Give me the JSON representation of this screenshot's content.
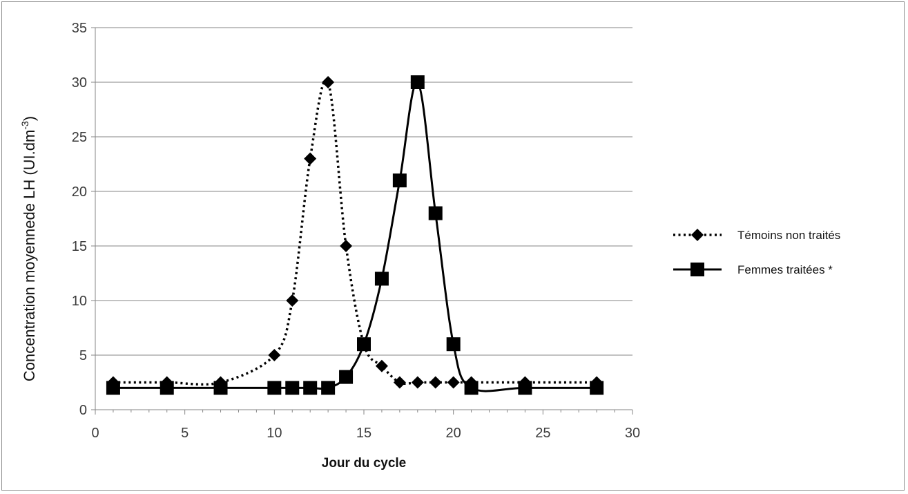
{
  "chart_data": {
    "type": "line",
    "title": "",
    "xlabel": "Jour du cycle",
    "ylabel": "Concentration moyennede LH (UI.dm",
    "ylabel_sup": "-3",
    "ylabel_close": ")",
    "xlim": [
      0,
      30
    ],
    "ylim": [
      0,
      35
    ],
    "x_ticks": [
      0,
      5,
      10,
      15,
      20,
      25,
      30
    ],
    "y_ticks": [
      0,
      5,
      10,
      15,
      20,
      25,
      30,
      35
    ],
    "grid": "horizontal",
    "legend_position": "right",
    "series": [
      {
        "name": "Témoins non traités",
        "style": "dotted",
        "marker": "diamond",
        "color": "#000000",
        "points": [
          [
            1,
            2.5
          ],
          [
            4,
            2.5
          ],
          [
            7,
            2.5
          ],
          [
            10,
            5
          ],
          [
            11,
            10
          ],
          [
            12,
            23
          ],
          [
            13,
            30
          ],
          [
            14,
            15
          ],
          [
            15,
            6
          ],
          [
            16,
            4
          ],
          [
            17,
            2.5
          ],
          [
            18,
            2.5
          ],
          [
            19,
            2.5
          ],
          [
            20,
            2.5
          ],
          [
            21,
            2.5
          ],
          [
            24,
            2.5
          ],
          [
            28,
            2.5
          ]
        ]
      },
      {
        "name": "Femmes traitées *",
        "style": "solid",
        "marker": "square",
        "color": "#000000",
        "points": [
          [
            1,
            2
          ],
          [
            4,
            2
          ],
          [
            7,
            2
          ],
          [
            10,
            2
          ],
          [
            11,
            2
          ],
          [
            12,
            2
          ],
          [
            13,
            2
          ],
          [
            14,
            3
          ],
          [
            15,
            6
          ],
          [
            16,
            12
          ],
          [
            17,
            21
          ],
          [
            18,
            30
          ],
          [
            19,
            18
          ],
          [
            20,
            6
          ],
          [
            21,
            2
          ],
          [
            24,
            2
          ],
          [
            28,
            2
          ]
        ]
      }
    ]
  }
}
